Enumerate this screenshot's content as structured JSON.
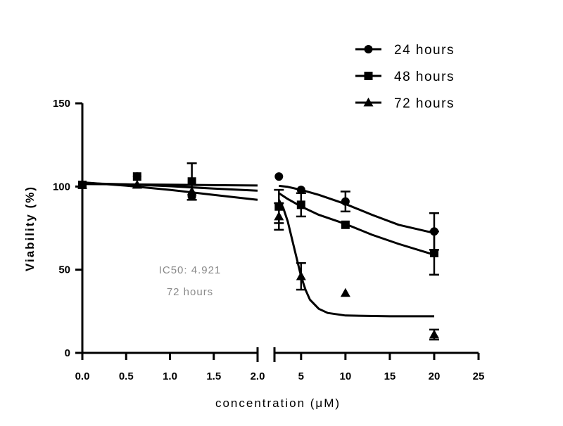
{
  "chart_data": {
    "type": "scatter",
    "title": "",
    "xlabel": "concentration (μM)",
    "ylabel": "Viability (%)",
    "ylim": [
      0,
      150
    ],
    "y_ticks": [
      "0",
      "50",
      "100",
      "150"
    ],
    "x_axis_segments": [
      {
        "range": [
          0,
          2.0
        ],
        "ticks": [
          "0.0",
          "0.5",
          "1.0",
          "1.5",
          "2.0"
        ]
      },
      {
        "range": [
          2.0,
          25
        ],
        "ticks": [
          "5",
          "10",
          "15",
          "20",
          "25"
        ]
      }
    ],
    "legend_position": "top-right",
    "series": [
      {
        "name": "24 hours",
        "marker": "circle",
        "points": [
          {
            "x": 0,
            "y": 101,
            "err": 0
          },
          {
            "x": 0.625,
            "y": 106,
            "err": 0
          },
          {
            "x": 1.25,
            "y": 94,
            "err": 0
          },
          {
            "x": 2.5,
            "y": 106,
            "err": 0
          },
          {
            "x": 5,
            "y": 98,
            "err": 0
          },
          {
            "x": 10,
            "y": 91,
            "err": 6
          },
          {
            "x": 20,
            "y": 73,
            "err": 11
          }
        ],
        "fit": [
          [
            0,
            101.5
          ],
          [
            0.5,
            101.3
          ],
          [
            1.0,
            101.1
          ],
          [
            1.5,
            100.8
          ],
          [
            2.0,
            100.6
          ],
          [
            2.5,
            100.4
          ],
          [
            3.5,
            99.8
          ],
          [
            5,
            98
          ],
          [
            7,
            95
          ],
          [
            10,
            89.5
          ],
          [
            13,
            83
          ],
          [
            16,
            77
          ],
          [
            20,
            72
          ]
        ]
      },
      {
        "name": "48 hours",
        "marker": "square",
        "points": [
          {
            "x": 0,
            "y": 101,
            "err": 0
          },
          {
            "x": 0.625,
            "y": 106,
            "err": 0
          },
          {
            "x": 1.25,
            "y": 103,
            "err": 11
          },
          {
            "x": 2.5,
            "y": 88,
            "err": 10
          },
          {
            "x": 5,
            "y": 89,
            "err": 7
          },
          {
            "x": 10,
            "y": 77,
            "err": 0
          },
          {
            "x": 20,
            "y": 60,
            "err": 13
          }
        ],
        "fit": [
          [
            0,
            102
          ],
          [
            0.5,
            101.3
          ],
          [
            1.0,
            100.2
          ],
          [
            1.5,
            98.8
          ],
          [
            2.0,
            97.5
          ],
          [
            2.5,
            96
          ],
          [
            3.5,
            92.5
          ],
          [
            5,
            88
          ],
          [
            7,
            83
          ],
          [
            10,
            77.5
          ],
          [
            13,
            71
          ],
          [
            16,
            65.5
          ],
          [
            20,
            59
          ]
        ]
      },
      {
        "name": "72 hours",
        "marker": "triangle",
        "points": [
          {
            "x": 0,
            "y": 101,
            "err": 0
          },
          {
            "x": 0.625,
            "y": 101,
            "err": 0
          },
          {
            "x": 1.25,
            "y": 97,
            "err": 0
          },
          {
            "x": 2.5,
            "y": 82,
            "err": 8
          },
          {
            "x": 5,
            "y": 46,
            "err": 8
          },
          {
            "x": 10,
            "y": 36,
            "err": 0
          },
          {
            "x": 20,
            "y": 11,
            "err": 3
          }
        ],
        "fit": [
          [
            0,
            102.5
          ],
          [
            0.5,
            100.5
          ],
          [
            1.0,
            98
          ],
          [
            1.5,
            95
          ],
          [
            2.0,
            92
          ],
          [
            2.5,
            92
          ],
          [
            3.0,
            87
          ],
          [
            3.5,
            79
          ],
          [
            4.0,
            68
          ],
          [
            4.5,
            57
          ],
          [
            5,
            46
          ],
          [
            5.5,
            38
          ],
          [
            6,
            32
          ],
          [
            7,
            26.5
          ],
          [
            8,
            24
          ],
          [
            10,
            22.5
          ],
          [
            15,
            22
          ],
          [
            20,
            22
          ]
        ]
      }
    ],
    "annotations": [
      {
        "text": "IC50: 4.921",
        "x": 2.0,
        "y": 50
      },
      {
        "text": "72 hours",
        "x": 2.0,
        "y": 37
      }
    ]
  }
}
